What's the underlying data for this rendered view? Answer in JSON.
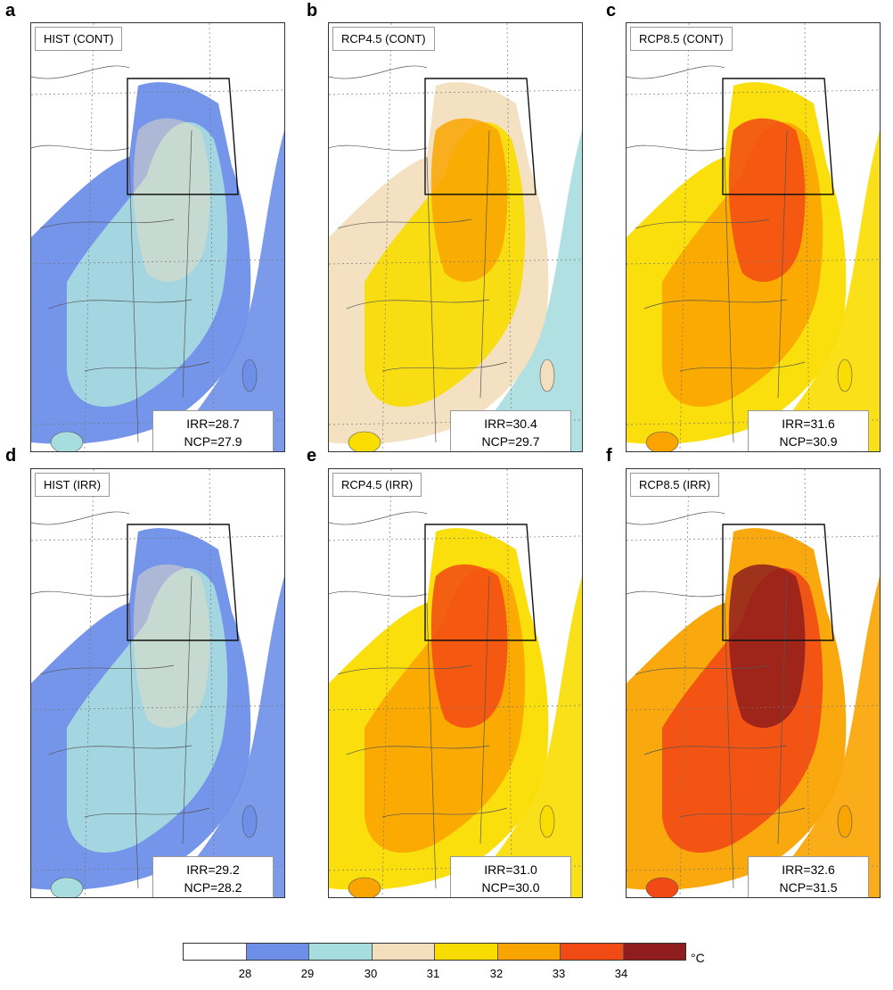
{
  "panels": [
    {
      "letter": "a",
      "label": "HIST (CONT)",
      "irr": "IRR=28.7",
      "ncp": "NCP=27.9"
    },
    {
      "letter": "b",
      "label": "RCP4.5 (CONT)",
      "irr": "IRR=30.4",
      "ncp": "NCP=29.7"
    },
    {
      "letter": "c",
      "label": "RCP8.5 (CONT)",
      "irr": "IRR=31.6",
      "ncp": "NCP=30.9"
    },
    {
      "letter": "d",
      "label": "HIST (IRR)",
      "irr": "IRR=29.2",
      "ncp": "NCP=28.2"
    },
    {
      "letter": "e",
      "label": "RCP4.5 (IRR)",
      "irr": "IRR=31.0",
      "ncp": "NCP=30.0"
    },
    {
      "letter": "f",
      "label": "RCP8.5 (IRR)",
      "irr": "IRR=32.6",
      "ncp": "NCP=31.5"
    }
  ],
  "colorbar": {
    "colors": [
      "#ffffff",
      "#6d8fe8",
      "#a8dde0",
      "#f3dfbe",
      "#fadd00",
      "#f9a400",
      "#f24a14",
      "#8f1d1d"
    ],
    "ticks": [
      "28",
      "29",
      "30",
      "31",
      "32",
      "33",
      "34"
    ],
    "unit": "°C"
  }
}
